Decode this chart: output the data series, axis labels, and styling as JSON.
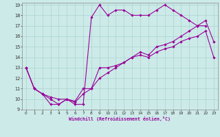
{
  "xlabel": "Windchill (Refroidissement éolien,°C)",
  "background_color": "#cceae8",
  "grid_color": "#aad4d0",
  "line_color": "#990099",
  "xlim": [
    -0.5,
    23.5
  ],
  "ylim": [
    9,
    19.2
  ],
  "xticks": [
    0,
    1,
    2,
    3,
    4,
    5,
    6,
    7,
    8,
    9,
    10,
    11,
    12,
    13,
    14,
    15,
    16,
    17,
    18,
    19,
    20,
    21,
    22,
    23
  ],
  "yticks": [
    9,
    10,
    11,
    12,
    13,
    14,
    15,
    16,
    17,
    18,
    19
  ],
  "line1_x": [
    0,
    1,
    2,
    3,
    4,
    5,
    6,
    7,
    8,
    9,
    10,
    11,
    12,
    13,
    14,
    15,
    16,
    17,
    18,
    19,
    20,
    21,
    22,
    23
  ],
  "line1_y": [
    13,
    11,
    10.5,
    10,
    9.5,
    10,
    9.8,
    11,
    11,
    13,
    13,
    13.2,
    13.5,
    14,
    14.2,
    14,
    14.5,
    14.8,
    15,
    15.5,
    15.8,
    16,
    16.5,
    14
  ],
  "line2_x": [
    0,
    1,
    2,
    3,
    4,
    5,
    6,
    7,
    8,
    9,
    10,
    11,
    12,
    13,
    14,
    15,
    16,
    17,
    18,
    19,
    20,
    21,
    22,
    23
  ],
  "line2_y": [
    13,
    11,
    10.5,
    10.2,
    10,
    10,
    9.7,
    10.5,
    11,
    12,
    12.5,
    13,
    13.5,
    14,
    14.5,
    14.2,
    15,
    15.2,
    15.5,
    16,
    16.5,
    17,
    17.5,
    15.5
  ],
  "line3_x": [
    0,
    1,
    2,
    3,
    4,
    5,
    6,
    7,
    8,
    9,
    10,
    11,
    12,
    13,
    14,
    15,
    16,
    17,
    18,
    19,
    20,
    21,
    22
  ],
  "line3_y": [
    13,
    11,
    10.5,
    9.5,
    9.5,
    10,
    9.5,
    9.5,
    17.8,
    19,
    18,
    18.5,
    18.5,
    18,
    18,
    18,
    18.5,
    19,
    18.5,
    18,
    17.5,
    17,
    17
  ]
}
